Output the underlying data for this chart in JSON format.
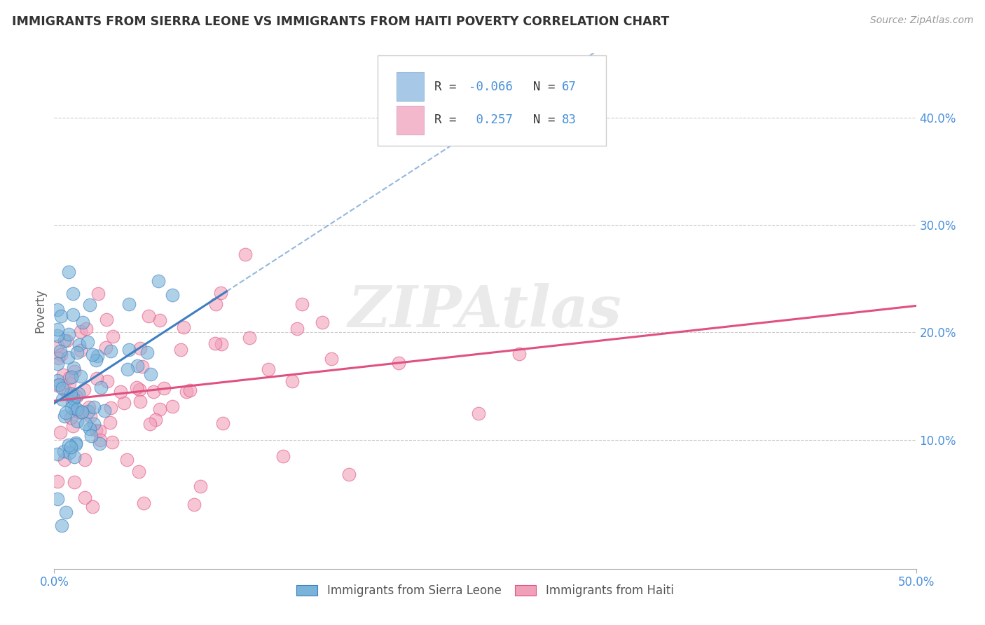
{
  "title": "IMMIGRANTS FROM SIERRA LEONE VS IMMIGRANTS FROM HAITI POVERTY CORRELATION CHART",
  "source_text": "Source: ZipAtlas.com",
  "ylabel": "Poverty",
  "xlim": [
    0.0,
    0.5
  ],
  "ylim": [
    -0.02,
    0.46
  ],
  "xticks": [
    0.0,
    0.5
  ],
  "xtick_labels": [
    "0.0%",
    "50.0%"
  ],
  "yticks": [
    0.1,
    0.2,
    0.3,
    0.4
  ],
  "ytick_labels_right": [
    "10.0%",
    "20.0%",
    "30.0%",
    "40.0%"
  ],
  "watermark": "ZIPAtlas",
  "sierra_leone_color": "#7ab3d9",
  "haiti_color": "#f0a0b8",
  "sierra_leone_trend_color": "#3d7fc1",
  "haiti_trend_color": "#e05080",
  "sierra_leone_R": -0.066,
  "sierra_leone_N": 67,
  "haiti_R": 0.257,
  "haiti_N": 83,
  "background_color": "#ffffff",
  "grid_color": "#cccccc",
  "legend_sl_color": "#a8c8e8",
  "legend_ht_color": "#f4b8cc",
  "tick_color": "#4a90d9",
  "axis_label_color": "#666666"
}
